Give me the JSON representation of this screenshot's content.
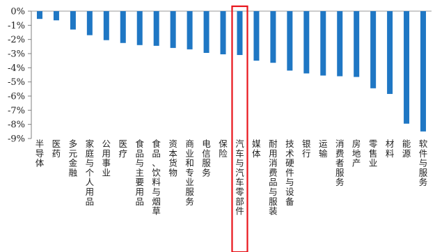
{
  "chart_data": {
    "type": "bar",
    "title": "",
    "xlabel": "",
    "ylabel": "",
    "ylim": [
      -9,
      0
    ],
    "y_ticks": [
      "0%",
      "-1%",
      "-2%",
      "-3%",
      "-4%",
      "-5%",
      "-6%",
      "-7%",
      "-8%",
      "-9%"
    ],
    "y_unit": "%",
    "grid": false,
    "legend": "none",
    "bar_color": "#1F77C4",
    "highlight_color": "#E8141B",
    "highlight_category": "汽车与汽车零部件",
    "categories": [
      "半导体",
      "医药",
      "多元金融",
      "家庭与个人用品",
      "公用事业",
      "医疗",
      "食品与主要用品",
      "食品、饮料与烟草",
      "资本货物",
      "商业和专业服务",
      "电信服务",
      "保险",
      "汽车与汽车零部件",
      "媒体",
      "耐用消费品与服装",
      "技术硬件与设备",
      "银行",
      "运输",
      "消费者服务",
      "房地产",
      "零售业",
      "材料",
      "能源",
      "软件与服务"
    ],
    "values": [
      -0.55,
      -0.65,
      -1.3,
      -1.7,
      -2.05,
      -2.25,
      -2.4,
      -2.45,
      -2.6,
      -2.7,
      -2.95,
      -3.05,
      -3.1,
      -3.5,
      -3.65,
      -4.2,
      -4.4,
      -4.55,
      -4.6,
      -4.65,
      -5.45,
      -5.85,
      -7.95,
      -8.5
    ]
  }
}
